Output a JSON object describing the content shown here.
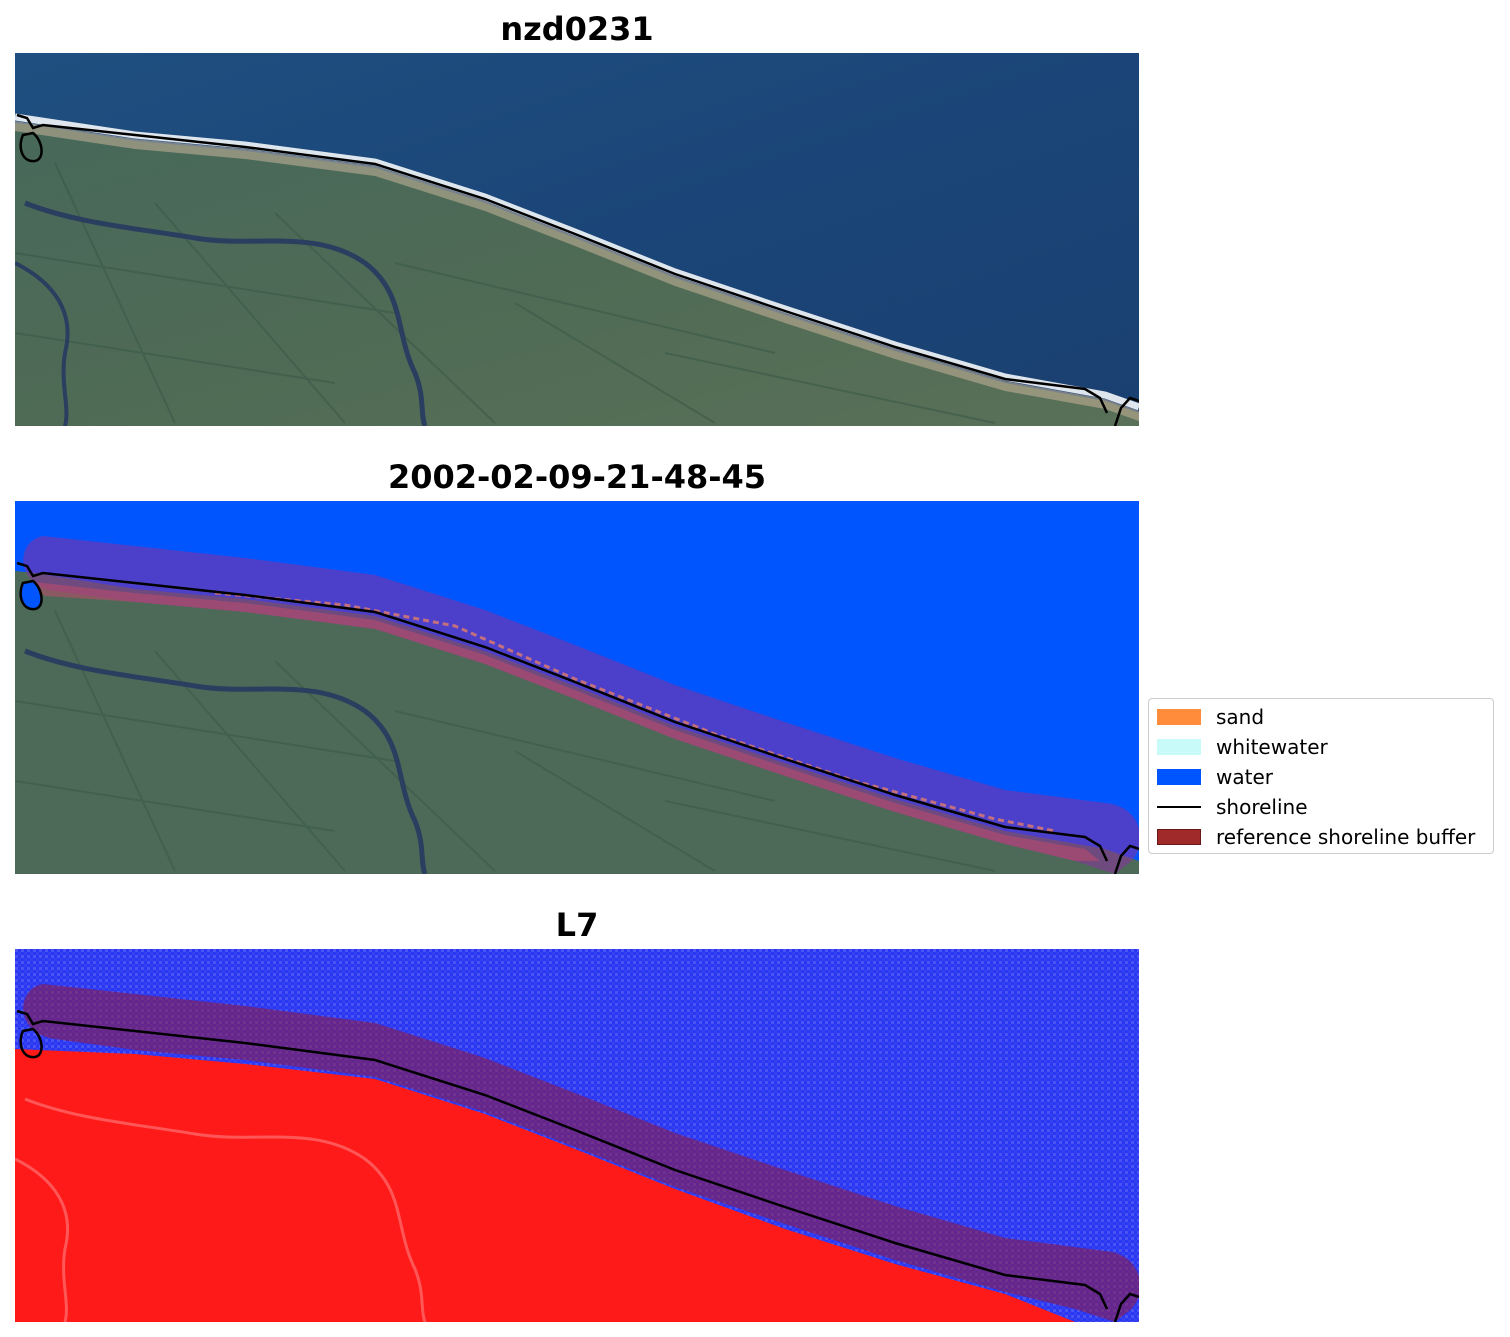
{
  "panels": [
    {
      "title": "nzd0231"
    },
    {
      "title": "2002-02-09-21-48-45"
    },
    {
      "title": "L7"
    }
  ],
  "legend": {
    "items": [
      {
        "label": "sand",
        "color": "#ff8c3a",
        "kind": "patch"
      },
      {
        "label": "whitewater",
        "color": "#c8fafa",
        "kind": "patch"
      },
      {
        "label": "water",
        "color": "#0055ff",
        "kind": "patch"
      },
      {
        "label": "shoreline",
        "color": "#000000",
        "kind": "line"
      },
      {
        "label": "reference shoreline buffer",
        "color": "#a02a2a",
        "kind": "patch"
      }
    ]
  },
  "colors": {
    "land": "#4a6a55",
    "ocean": "#1e4a7a",
    "classified_water": "#0055ff",
    "buffer": "#7a3a8a",
    "ndwi_land": "#ff1a1a",
    "ndwi_water": "#2a33ff"
  }
}
